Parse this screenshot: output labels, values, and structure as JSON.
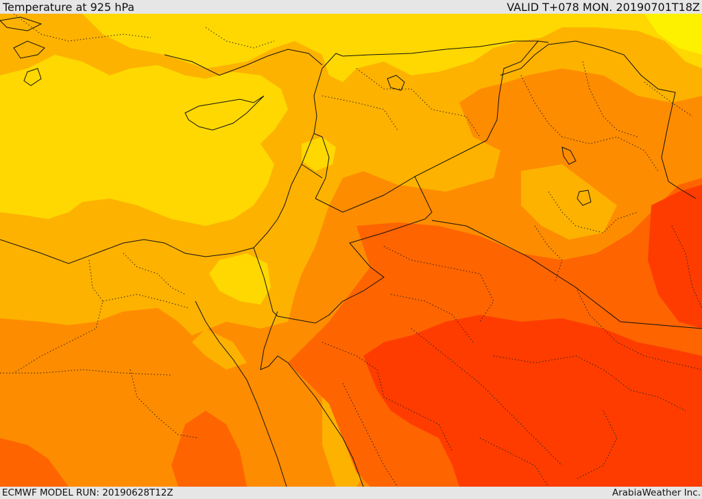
{
  "header": {
    "title": "Temperature at 925 hPa",
    "valid": "VALID T+078 MON. 20190701T18Z"
  },
  "footer": {
    "model_run": "ECMWF MODEL RUN: 20190628T12Z",
    "provider": "ArabiaWeather Inc."
  },
  "map": {
    "field": "temperature",
    "level": "925 hPa",
    "palette": {
      "light_yellow": "#fef100",
      "yellow": "#fed800",
      "amber": "#fdb200",
      "orange": "#fe8c00",
      "dark_orange": "#fe6400",
      "red_orange": "#fe3c00"
    },
    "boundaries": "country borders (solid), coastlines (solid), provinces (dotted)"
  }
}
